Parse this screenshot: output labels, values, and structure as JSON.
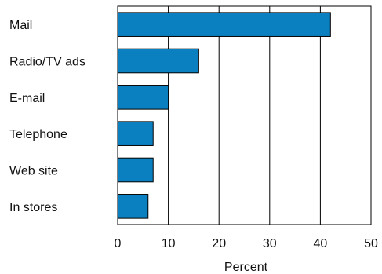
{
  "chart_data": {
    "type": "bar",
    "orientation": "horizontal",
    "categories": [
      "Mail",
      "Radio/TV ads",
      "E-mail",
      "Telephone",
      "Web site",
      "In stores"
    ],
    "values": [
      42,
      16,
      10,
      7,
      7,
      6
    ],
    "xlabel": "Percent",
    "ylabel": "",
    "xlim": [
      0,
      50
    ],
    "xticks": [
      0,
      10,
      20,
      30,
      40,
      50
    ],
    "xtick_labels": [
      "0",
      "10",
      "20",
      "30",
      "40",
      "50"
    ],
    "grid": "vertical",
    "legend": "none",
    "bar_color": "#0a80c0",
    "bar_edge_color": "#000000"
  }
}
